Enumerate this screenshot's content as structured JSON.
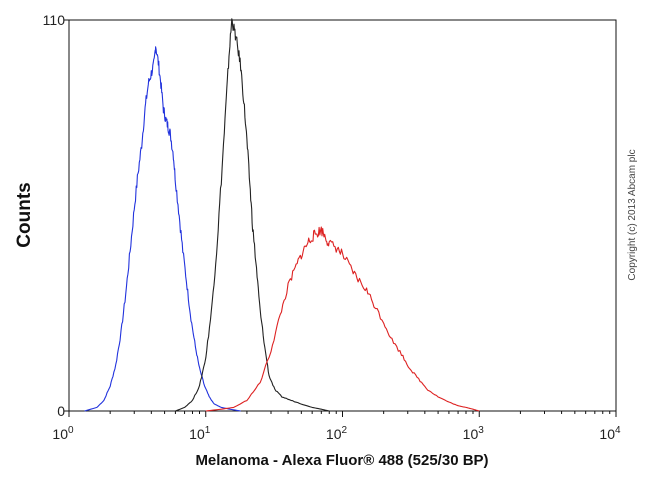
{
  "chart_data": {
    "type": "line",
    "xlabel": "Melanoma - Alexa Fluor® 488 (525/30 BP)",
    "ylabel": "Counts",
    "x_scale": "log",
    "xlim": [
      1,
      10000
    ],
    "ylim": [
      0,
      110
    ],
    "x_ticks": [
      {
        "base": "10",
        "exp": "0"
      },
      {
        "base": "10",
        "exp": "1"
      },
      {
        "base": "10",
        "exp": "2"
      },
      {
        "base": "10",
        "exp": "3"
      },
      {
        "base": "10",
        "exp": "4"
      }
    ],
    "y_ticks": [
      "0",
      "110"
    ],
    "grid": false,
    "note": "Copyright (c) 2013 Abcam plc",
    "series": [
      {
        "color": "#2233dd",
        "points": [
          [
            1.3,
            0
          ],
          [
            1.6,
            1
          ],
          [
            1.8,
            3
          ],
          [
            2.0,
            7
          ],
          [
            2.2,
            13
          ],
          [
            2.4,
            22
          ],
          [
            2.6,
            33
          ],
          [
            2.8,
            45
          ],
          [
            3.0,
            57
          ],
          [
            3.2,
            67
          ],
          [
            3.4,
            75
          ],
          [
            3.6,
            85
          ],
          [
            3.8,
            92
          ],
          [
            4.0,
            95
          ],
          [
            4.2,
            98
          ],
          [
            4.3,
            103
          ],
          [
            4.5,
            98
          ],
          [
            4.7,
            92
          ],
          [
            4.9,
            85
          ],
          [
            5.1,
            82
          ],
          [
            5.3,
            80
          ],
          [
            5.5,
            78
          ],
          [
            5.8,
            72
          ],
          [
            6.0,
            65
          ],
          [
            6.4,
            55
          ],
          [
            6.8,
            45
          ],
          [
            7.3,
            35
          ],
          [
            7.8,
            26
          ],
          [
            8.4,
            18
          ],
          [
            9.0,
            12
          ],
          [
            9.8,
            7
          ],
          [
            10.6,
            4
          ],
          [
            11.5,
            2
          ],
          [
            13,
            1
          ],
          [
            15,
            0.5
          ],
          [
            18,
            0
          ]
        ]
      },
      {
        "color": "#222222",
        "points": [
          [
            6.0,
            0
          ],
          [
            7.0,
            1
          ],
          [
            8.0,
            3
          ],
          [
            9.0,
            7
          ],
          [
            10.0,
            15
          ],
          [
            11.0,
            28
          ],
          [
            12.0,
            45
          ],
          [
            13.0,
            65
          ],
          [
            14.0,
            85
          ],
          [
            14.8,
            100
          ],
          [
            15.5,
            110
          ],
          [
            16.2,
            107
          ],
          [
            17.0,
            103
          ],
          [
            18.0,
            97
          ],
          [
            19.0,
            87
          ],
          [
            20.0,
            76
          ],
          [
            21.0,
            64
          ],
          [
            22.0,
            52
          ],
          [
            23.5,
            40
          ],
          [
            25.0,
            28
          ],
          [
            27.0,
            18
          ],
          [
            29.0,
            10
          ],
          [
            32.0,
            6
          ],
          [
            36.0,
            4
          ],
          [
            42.0,
            3
          ],
          [
            50.0,
            2
          ],
          [
            60.0,
            1
          ],
          [
            70.0,
            0.5
          ],
          [
            80.0,
            0
          ]
        ]
      },
      {
        "color": "#dd2222",
        "points": [
          [
            10.0,
            0
          ],
          [
            13.0,
            0.5
          ],
          [
            16.0,
            1
          ],
          [
            20.0,
            3
          ],
          [
            25.0,
            8
          ],
          [
            30.0,
            17
          ],
          [
            35.0,
            27
          ],
          [
            40.0,
            35
          ],
          [
            45.0,
            40
          ],
          [
            50.0,
            44
          ],
          [
            55.0,
            47
          ],
          [
            60.0,
            49
          ],
          [
            65.0,
            50
          ],
          [
            70.0,
            51
          ],
          [
            75.0,
            49
          ],
          [
            80.0,
            47
          ],
          [
            90.0,
            46
          ],
          [
            100.0,
            44
          ],
          [
            115.0,
            40
          ],
          [
            130.0,
            37
          ],
          [
            150.0,
            34
          ],
          [
            170.0,
            30
          ],
          [
            200.0,
            25
          ],
          [
            230.0,
            20
          ],
          [
            270.0,
            16
          ],
          [
            310.0,
            12
          ],
          [
            360.0,
            9
          ],
          [
            420.0,
            6
          ],
          [
            500.0,
            4
          ],
          [
            600.0,
            2.5
          ],
          [
            700.0,
            1.5
          ],
          [
            800.0,
            1
          ],
          [
            900.0,
            0.5
          ],
          [
            1000.0,
            0
          ]
        ]
      }
    ]
  }
}
